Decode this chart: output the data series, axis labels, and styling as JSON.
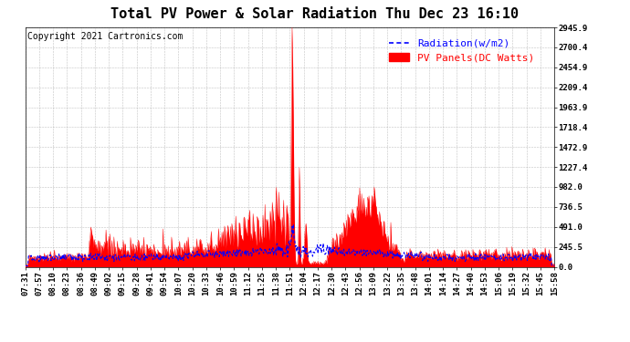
{
  "title": "Total PV Power & Solar Radiation Thu Dec 23 16:10",
  "copyright": "Copyright 2021 Cartronics.com",
  "legend_radiation": "Radiation(w/m2)",
  "legend_pv": "PV Panels(DC Watts)",
  "yticks": [
    0.0,
    245.5,
    491.0,
    736.5,
    982.0,
    1227.4,
    1472.9,
    1718.4,
    1963.9,
    2209.4,
    2454.9,
    2700.4,
    2945.9
  ],
  "ymax": 2945.9,
  "ymin": 0.0,
  "xtick_labels": [
    "07:31",
    "07:57",
    "08:10",
    "08:23",
    "08:36",
    "08:49",
    "09:02",
    "09:15",
    "09:28",
    "09:41",
    "09:54",
    "10:07",
    "10:20",
    "10:33",
    "10:46",
    "10:59",
    "11:12",
    "11:25",
    "11:38",
    "11:51",
    "12:04",
    "12:17",
    "12:30",
    "12:43",
    "12:56",
    "13:09",
    "13:22",
    "13:35",
    "13:48",
    "14:01",
    "14:14",
    "14:27",
    "14:40",
    "14:53",
    "15:06",
    "15:19",
    "15:32",
    "15:45",
    "15:58"
  ],
  "background_color": "#ffffff",
  "plot_bg_color": "#ffffff",
  "grid_color": "#999999",
  "radiation_color": "#0000ff",
  "pv_color": "#ff0000",
  "pv_fill_color": "#ff0000",
  "title_fontsize": 11,
  "tick_fontsize": 6.5,
  "legend_fontsize": 8,
  "copyright_fontsize": 7
}
